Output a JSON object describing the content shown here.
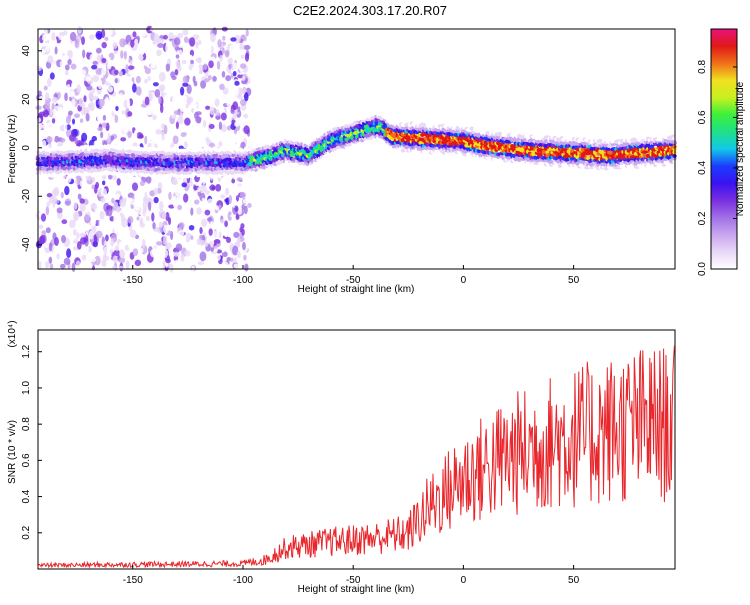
{
  "title": "C2E2.2024.303.17.20.R07",
  "colors": {
    "snr_line": "#e8262b",
    "axis": "#000000"
  },
  "colorbar": {
    "label": "Normalized spectral amplitude",
    "ticks": [
      "0.0",
      "0.2",
      "0.4",
      "0.6",
      "0.8"
    ],
    "tick_values": [
      0.0,
      0.2,
      0.4,
      0.6,
      0.8
    ],
    "range": [
      0.0,
      0.95
    ],
    "colormap": [
      "#ffffff",
      "#e9d8f6",
      "#c9a6ee",
      "#a070e6",
      "#7a2fe0",
      "#3a12f0",
      "#1a3cff",
      "#12c8e8",
      "#1fe08a",
      "#3cf03c",
      "#c8f020",
      "#f0e020",
      "#f07018",
      "#e01818",
      "#e8147c"
    ]
  },
  "chart_data": [
    {
      "type": "heatmap",
      "title": "C2E2.2024.303.17.20.R07",
      "xlabel": "Height of straight line (km)",
      "ylabel": "Frequency (Hz)",
      "xlim": [
        -193,
        96
      ],
      "ylim": [
        -50,
        49
      ],
      "x_ticks": [
        -150,
        -100,
        -50,
        0,
        50
      ],
      "y_ticks": [
        -40,
        -20,
        0,
        20,
        40
      ],
      "x_tick_labels": [
        "-150",
        "-100",
        "-50",
        "0",
        "50"
      ],
      "y_tick_labels": [
        "-40",
        "-20",
        "0",
        "20",
        "40"
      ],
      "ridge": [
        {
          "x": -193,
          "y": -6
        },
        {
          "x": -160,
          "y": -5
        },
        {
          "x": -140,
          "y": -6
        },
        {
          "x": -100,
          "y": -6
        },
        {
          "x": -90,
          "y": -4
        },
        {
          "x": -80,
          "y": -1
        },
        {
          "x": -70,
          "y": -3
        },
        {
          "x": -60,
          "y": 3
        },
        {
          "x": -50,
          "y": 6
        },
        {
          "x": -38,
          "y": 9
        },
        {
          "x": -32,
          "y": 5
        },
        {
          "x": -20,
          "y": 4
        },
        {
          "x": 0,
          "y": 3
        },
        {
          "x": 10,
          "y": 1
        },
        {
          "x": 30,
          "y": -1
        },
        {
          "x": 50,
          "y": -2
        },
        {
          "x": 65,
          "y": -3
        },
        {
          "x": 80,
          "y": -2
        },
        {
          "x": 96,
          "y": -1
        }
      ],
      "noise_region_x": [
        -193,
        -97
      ]
    },
    {
      "type": "line",
      "xlabel": "Height of straight line (km)",
      "ylabel": "SNR (10 * v/v)",
      "y_multiplier_label": "(x10⁴)",
      "xlim": [
        -193,
        96
      ],
      "ylim": [
        0.0,
        1.32
      ],
      "x_ticks": [
        -150,
        -100,
        -50,
        0,
        50
      ],
      "y_ticks": [
        0.2,
        0.4,
        0.6,
        0.8,
        1.0,
        1.2
      ],
      "x_tick_labels": [
        "-150",
        "-100",
        "-50",
        "0",
        "50"
      ],
      "y_tick_labels": [
        "0.2",
        "0.4",
        "0.6",
        "0.8",
        "1.0",
        "1.2"
      ],
      "series": [
        {
          "trend": [
            {
              "x": -193,
              "y": 0.02
            },
            {
              "x": -100,
              "y": 0.03
            },
            {
              "x": -90,
              "y": 0.05
            },
            {
              "x": -80,
              "y": 0.12
            },
            {
              "x": -60,
              "y": 0.15
            },
            {
              "x": -40,
              "y": 0.17
            },
            {
              "x": -25,
              "y": 0.2
            },
            {
              "x": -15,
              "y": 0.35
            },
            {
              "x": 0,
              "y": 0.5
            },
            {
              "x": 20,
              "y": 0.62
            },
            {
              "x": 40,
              "y": 0.7
            },
            {
              "x": 60,
              "y": 0.75
            },
            {
              "x": 80,
              "y": 0.8
            },
            {
              "x": 96,
              "y": 0.8
            }
          ],
          "color": "#e8262b"
        }
      ]
    }
  ]
}
